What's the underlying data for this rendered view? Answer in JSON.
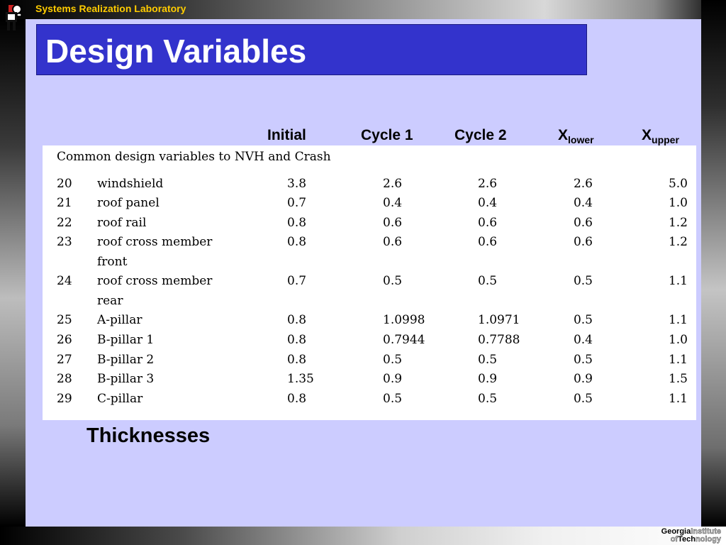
{
  "header": {
    "lab_name": "Systems Realization Laboratory"
  },
  "slide": {
    "title": "Design Variables",
    "footer_label": "Thicknesses"
  },
  "columns": {
    "initial": "Initial",
    "cycle1": "Cycle 1",
    "cycle2": "Cycle 2",
    "x_lower_base": "X",
    "x_lower_sub": "lower",
    "x_upper_base": "X",
    "x_upper_sub": "upper"
  },
  "table": {
    "caption": "Common design variables to NVH and Crash",
    "rows": [
      {
        "num": "20",
        "name": "windshield",
        "initial": "3.8",
        "cycle1": "2.6",
        "cycle2": "2.6",
        "xlower": "2.6",
        "xupper": "5.0"
      },
      {
        "num": "21",
        "name": "roof panel",
        "initial": "0.7",
        "cycle1": "0.4",
        "cycle2": "0.4",
        "xlower": "0.4",
        "xupper": "1.0"
      },
      {
        "num": "22",
        "name": "roof rail",
        "initial": "0.8",
        "cycle1": "0.6",
        "cycle2": "0.6",
        "xlower": "0.6",
        "xupper": "1.2"
      },
      {
        "num": "23",
        "name": "roof cross member",
        "name2": "front",
        "initial": "0.8",
        "cycle1": "0.6",
        "cycle2": "0.6",
        "xlower": "0.6",
        "xupper": "1.2"
      },
      {
        "num": "24",
        "name": "roof cross member",
        "name2": "rear",
        "initial": "0.7",
        "cycle1": "0.5",
        "cycle2": "0.5",
        "xlower": "0.5",
        "xupper": "1.1"
      },
      {
        "num": "25",
        "name": "A-pillar",
        "initial": "0.8",
        "cycle1": "1.0998",
        "cycle2": "1.0971",
        "xlower": "0.5",
        "xupper": "1.1"
      },
      {
        "num": "26",
        "name": "B-pillar 1",
        "initial": "0.8",
        "cycle1": "0.7944",
        "cycle2": "0.7788",
        "xlower": "0.4",
        "xupper": "1.0"
      },
      {
        "num": "27",
        "name": "B-pillar 2",
        "initial": "0.8",
        "cycle1": "0.5",
        "cycle2": "0.5",
        "xlower": "0.5",
        "xupper": "1.1"
      },
      {
        "num": "28",
        "name": "B-pillar 3",
        "initial": "1.35",
        "cycle1": "0.9",
        "cycle2": "0.9",
        "xlower": "0.9",
        "xupper": "1.5"
      },
      {
        "num": "29",
        "name": "C-pillar",
        "initial": "0.8",
        "cycle1": "0.5",
        "cycle2": "0.5",
        "xlower": "0.5",
        "xupper": "1.1"
      }
    ]
  },
  "footer_logo": {
    "line1_dark": "Georgia",
    "line1_light": "Institute",
    "line2_light_a": "of",
    "line2_dark": "Tech",
    "line2_light_b": "nology"
  }
}
